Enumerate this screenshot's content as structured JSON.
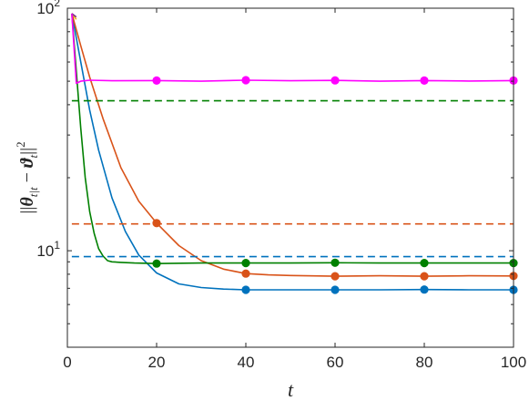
{
  "chart_data": {
    "type": "line",
    "xlabel": "t",
    "ylabel": "||θ_{t|t} − ϑ_t||²",
    "xlim": [
      0,
      100
    ],
    "ylim": [
      4,
      100
    ],
    "yscale": "log",
    "grid": false,
    "x_ticks": [
      0,
      20,
      40,
      60,
      80,
      100
    ],
    "x_tick_labels": [
      "0",
      "20",
      "40",
      "60",
      "80",
      "100"
    ],
    "y_ticks": [
      {
        "value": 100,
        "base": "10",
        "exp": "2"
      },
      {
        "value": 10,
        "base": "10",
        "exp": "1"
      }
    ],
    "series": [
      {
        "color": "#0072BD",
        "style": "solid",
        "x": [
          1,
          3,
          5,
          7,
          10,
          13,
          16,
          20,
          25,
          30,
          35,
          40,
          50,
          60,
          70,
          80,
          90,
          100
        ],
        "y": [
          95,
          60,
          38,
          26,
          16.5,
          12,
          9.6,
          8.1,
          7.3,
          7.05,
          6.95,
          6.9,
          6.9,
          6.9,
          6.9,
          6.92,
          6.9,
          6.9
        ],
        "markers_x": [
          40,
          60,
          80,
          100
        ],
        "markers_y": [
          6.9,
          6.9,
          6.92,
          6.9
        ]
      },
      {
        "color": "#D95319",
        "style": "solid",
        "x": [
          1,
          3,
          5,
          8,
          12,
          16,
          20,
          25,
          30,
          35,
          40,
          45,
          50,
          60,
          70,
          80,
          90,
          100
        ],
        "y": [
          95,
          70,
          52,
          35,
          22,
          16,
          13,
          10.5,
          9.1,
          8.4,
          8.05,
          7.95,
          7.9,
          7.85,
          7.88,
          7.85,
          7.88,
          7.87
        ],
        "markers_x": [
          20,
          40,
          60,
          80,
          100
        ],
        "markers_y": [
          13,
          8.05,
          7.85,
          7.85,
          7.87
        ]
      },
      {
        "color": "#EDB120",
        "style": "solid",
        "x": [
          1,
          2
        ],
        "y": [
          95,
          90
        ],
        "markers_x": [],
        "markers_y": []
      },
      {
        "color": "#7E2F8E",
        "style": "solid",
        "x": [
          1,
          2
        ],
        "y": [
          95,
          92
        ],
        "markers_x": [],
        "markers_y": []
      },
      {
        "color": "#008000",
        "style": "solid",
        "x": [
          1,
          2,
          3,
          4,
          5,
          6,
          7,
          8,
          9,
          10,
          12,
          15,
          20,
          30,
          40,
          50,
          60,
          70,
          80,
          90,
          100
        ],
        "y": [
          95,
          55,
          32,
          20,
          14.5,
          11.8,
          10.2,
          9.5,
          9.1,
          9.0,
          8.95,
          8.9,
          8.85,
          8.9,
          8.9,
          8.9,
          8.92,
          8.9,
          8.9,
          8.9,
          8.9
        ],
        "markers_x": [
          20,
          40,
          60,
          80,
          100
        ],
        "markers_y": [
          8.85,
          8.9,
          8.92,
          8.9,
          8.9
        ]
      },
      {
        "color": "#FF00FF",
        "style": "solid",
        "x": [
          1,
          2,
          3,
          5,
          10,
          20,
          30,
          40,
          50,
          60,
          70,
          80,
          90,
          100
        ],
        "y": [
          95,
          49,
          50,
          50.5,
          50.2,
          50.3,
          50,
          50.5,
          50.2,
          50.4,
          50,
          50.3,
          50.1,
          50.3
        ],
        "markers_x": [
          20,
          40,
          60,
          80,
          100
        ],
        "markers_y": [
          50.3,
          50.5,
          50.4,
          50.3,
          50.3
        ]
      },
      {
        "color": "#0072BD",
        "style": "dashed",
        "x": [
          1,
          100
        ],
        "y": [
          9.45,
          9.45
        ],
        "markers_x": [],
        "markers_y": []
      },
      {
        "color": "#D95319",
        "style": "dashed",
        "x": [
          1,
          100
        ],
        "y": [
          12.9,
          12.9
        ],
        "markers_x": [],
        "markers_y": []
      },
      {
        "color": "#008000",
        "style": "dashed",
        "x": [
          1,
          100
        ],
        "y": [
          41.5,
          41.5
        ],
        "markers_x": [],
        "markers_y": []
      }
    ]
  }
}
